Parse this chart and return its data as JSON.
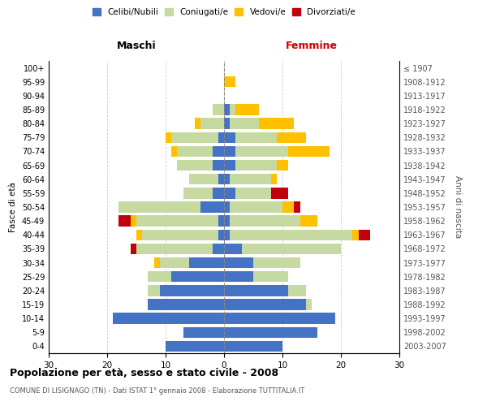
{
  "age_groups": [
    "0-4",
    "5-9",
    "10-14",
    "15-19",
    "20-24",
    "25-29",
    "30-34",
    "35-39",
    "40-44",
    "45-49",
    "50-54",
    "55-59",
    "60-64",
    "65-69",
    "70-74",
    "75-79",
    "80-84",
    "85-89",
    "90-94",
    "95-99",
    "100+"
  ],
  "birth_years": [
    "2003-2007",
    "1998-2002",
    "1993-1997",
    "1988-1992",
    "1983-1987",
    "1978-1982",
    "1973-1977",
    "1968-1972",
    "1963-1967",
    "1958-1962",
    "1953-1957",
    "1948-1952",
    "1943-1947",
    "1938-1942",
    "1933-1937",
    "1928-1932",
    "1923-1927",
    "1918-1922",
    "1913-1917",
    "1908-1912",
    "≤ 1907"
  ],
  "male_celibi": [
    10,
    7,
    19,
    13,
    11,
    9,
    6,
    2,
    1,
    1,
    4,
    2,
    1,
    2,
    2,
    1,
    0,
    0,
    0,
    0,
    0
  ],
  "male_coniugati": [
    0,
    0,
    0,
    0,
    2,
    4,
    5,
    13,
    13,
    14,
    14,
    5,
    5,
    6,
    6,
    8,
    4,
    2,
    0,
    0,
    0
  ],
  "male_vedovi": [
    0,
    0,
    0,
    0,
    0,
    0,
    1,
    0,
    1,
    1,
    0,
    0,
    0,
    0,
    1,
    1,
    1,
    0,
    0,
    0,
    0
  ],
  "male_divorziati": [
    0,
    0,
    0,
    0,
    0,
    0,
    0,
    1,
    0,
    2,
    0,
    0,
    0,
    0,
    0,
    0,
    0,
    0,
    0,
    0,
    0
  ],
  "female_celibi": [
    10,
    16,
    19,
    14,
    11,
    5,
    5,
    3,
    1,
    1,
    1,
    2,
    1,
    2,
    2,
    2,
    1,
    1,
    0,
    0,
    0
  ],
  "female_coniugati": [
    0,
    0,
    0,
    1,
    3,
    6,
    8,
    17,
    21,
    12,
    9,
    6,
    7,
    7,
    9,
    7,
    5,
    1,
    0,
    0,
    0
  ],
  "female_vedovi": [
    0,
    0,
    0,
    0,
    0,
    0,
    0,
    0,
    1,
    3,
    2,
    0,
    1,
    2,
    7,
    5,
    6,
    4,
    0,
    2,
    0
  ],
  "female_divorziati": [
    0,
    0,
    0,
    0,
    0,
    0,
    0,
    0,
    2,
    0,
    1,
    3,
    0,
    0,
    0,
    0,
    0,
    0,
    0,
    0,
    0
  ],
  "color_celibi": "#4472c4",
  "color_coniugati": "#c5d9a0",
  "color_vedovi": "#ffc000",
  "color_divorziati": "#c0000b",
  "title": "Popolazione per età, sesso e stato civile - 2008",
  "subtitle": "COMUNE DI LISIGNAGO (TN) - Dati ISTAT 1° gennaio 2008 - Elaborazione TUTTITALIA.IT",
  "xlabel_left": "Maschi",
  "xlabel_right": "Femmine",
  "ylabel_left": "Fasce di età",
  "ylabel_right": "Anni di nascita",
  "xlim": 30,
  "bg_color": "#ffffff",
  "grid_color": "#cccccc"
}
